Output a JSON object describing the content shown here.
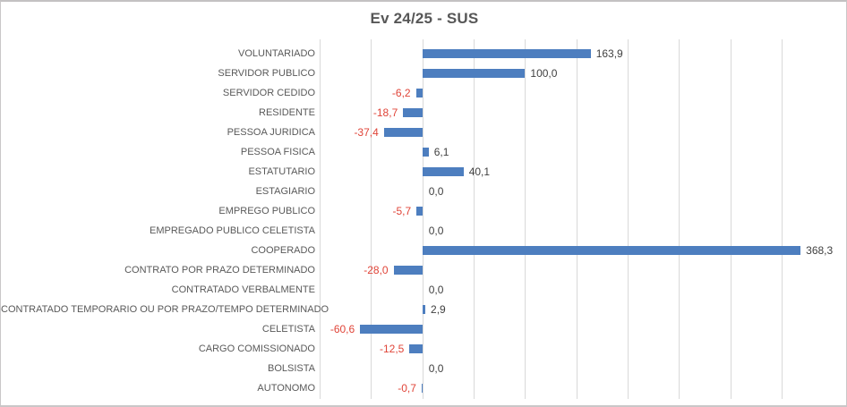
{
  "chart": {
    "title": "Ev 24/25 - SUS"
  },
  "chart_data": {
    "type": "bar",
    "orientation": "horizontal",
    "title": "Ev 24/25 - SUS",
    "categories": [
      "VOLUNTARIADO",
      "SERVIDOR PUBLICO",
      "SERVIDOR CEDIDO",
      "RESIDENTE",
      "PESSOA JURIDICA",
      "PESSOA FISICA",
      "ESTATUTARIO",
      "ESTAGIARIO",
      "EMPREGO PUBLICO",
      "EMPREGADO PUBLICO CELETISTA",
      "COOPERADO",
      "CONTRATO POR PRAZO DETERMINADO",
      "CONTRATADO VERBALMENTE",
      "CONTRATADO TEMPORARIO OU POR PRAZO/TEMPO DETERMINADO",
      "CELETISTA",
      "CARGO COMISSIONADO",
      "BOLSISTA",
      "AUTONOMO"
    ],
    "values": [
      163.9,
      100.0,
      -6.2,
      -18.7,
      -37.4,
      6.1,
      40.1,
      0.0,
      -5.7,
      0.0,
      368.3,
      -28.0,
      0.0,
      2.9,
      -60.6,
      -12.5,
      0.0,
      -0.7
    ],
    "value_labels": [
      "163,9",
      "100,0",
      "-6,2",
      "-18,7",
      "-37,4",
      "6,1",
      "40,1",
      "0,0",
      "-5,7",
      "0,0",
      "368,3",
      "-28,0",
      "0,0",
      "2,9",
      "-60,6",
      "-12,5",
      "0,0",
      "-0,7"
    ],
    "xlabel": "",
    "ylabel": "",
    "xlim": [
      -100,
      410
    ],
    "gridline_step": 50,
    "grid": true,
    "legend": false,
    "axis_tick_labels_visible": false,
    "colors": {
      "bar": "#4d7ebf",
      "negative_value_label": "#e04438",
      "positive_value_label": "#404040",
      "category_label": "#595959",
      "gridline": "#d9d9d9",
      "title": "#575757"
    }
  }
}
